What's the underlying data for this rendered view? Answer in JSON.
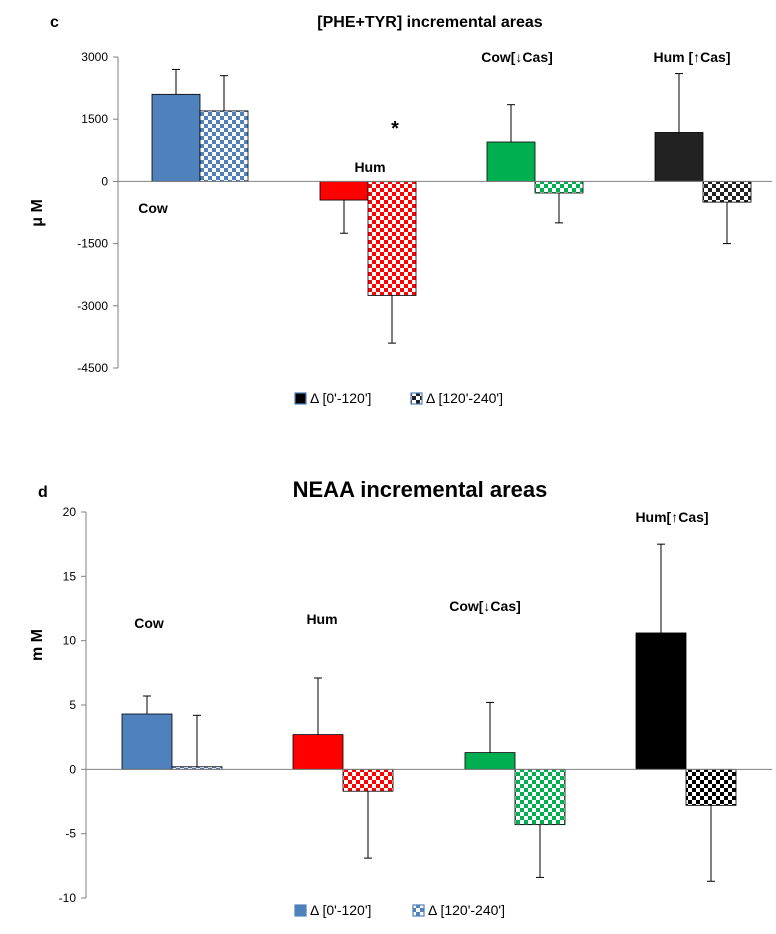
{
  "chart_data": [
    {
      "panel": "c",
      "type": "bar",
      "title": "[PHE+TYR] incremental areas",
      "ylabel": "μ M",
      "xlabel": "",
      "ylim": [
        -4500,
        3000
      ],
      "yticks": [
        "3000",
        "1500",
        "0",
        "-1500",
        "-3000",
        "-4500"
      ],
      "categories": [
        "Cow",
        "Hum",
        "Cow[↓Cas]",
        "Hum [↑Cas]"
      ],
      "category_colors": [
        "#4f81bd",
        "#ff0000",
        "#00b050",
        "#222222"
      ],
      "series": [
        {
          "name": "Δ [0'-120']",
          "pattern": "solid",
          "values": [
            2100,
            -450,
            950,
            1180
          ],
          "error": [
            600,
            800,
            900,
            1420
          ]
        },
        {
          "name": "Δ [120'-240']",
          "pattern": "checker",
          "values": [
            1700,
            -2750,
            -280,
            -500
          ],
          "error": [
            850,
            1150,
            720,
            1000
          ]
        }
      ],
      "annotations": [
        {
          "text": "*"
        }
      ],
      "legend": "bottom-center",
      "grid": false
    },
    {
      "panel": "d",
      "type": "bar",
      "title": "NEAA incremental areas",
      "ylabel": "m M",
      "xlabel": "",
      "ylim": [
        -10,
        20
      ],
      "yticks": [
        "20",
        "15",
        "10",
        "5",
        "0",
        "-5",
        "-10"
      ],
      "categories": [
        "Cow",
        "Hum",
        "Cow[↓Cas]",
        "Hum[↑Cas]"
      ],
      "category_colors": [
        "#4f81bd",
        "#ff0000",
        "#00b050",
        "#000000"
      ],
      "series": [
        {
          "name": "Δ [0'-120']",
          "pattern": "solid",
          "values": [
            4.3,
            2.7,
            1.3,
            10.6
          ],
          "error": [
            1.4,
            4.4,
            3.9,
            6.9
          ]
        },
        {
          "name": "Δ [120'-240']",
          "pattern": "checker",
          "values": [
            0.2,
            -1.7,
            -4.3,
            -2.8
          ],
          "error": [
            4.0,
            5.2,
            4.1,
            5.9
          ]
        }
      ],
      "legend": "bottom-center",
      "grid": false
    }
  ]
}
